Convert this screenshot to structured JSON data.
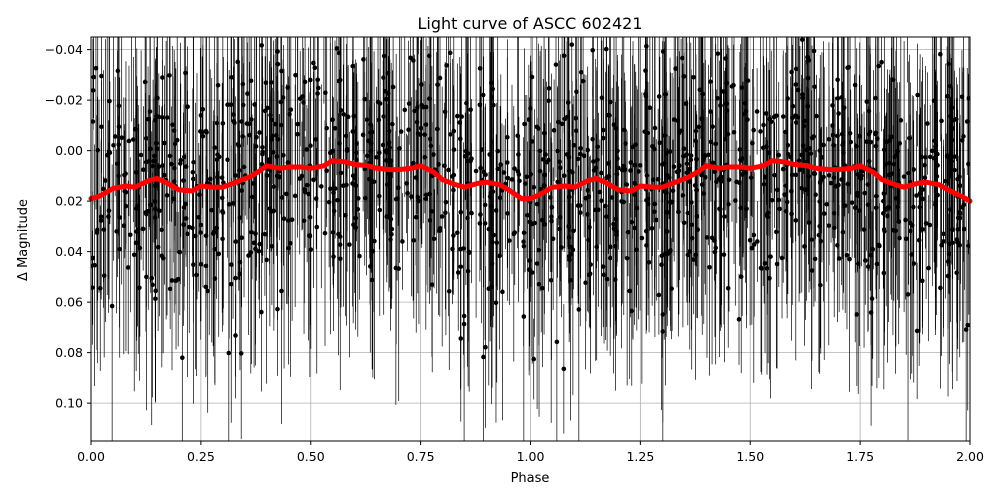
{
  "chart_data": {
    "type": "scatter",
    "title": "Light curve of ASCC 602421",
    "xlabel": "Phase",
    "ylabel": "Δ Magnitude",
    "xlim": [
      0.0,
      2.0
    ],
    "ylim": [
      0.115,
      -0.045
    ],
    "y_inverted": true,
    "grid": true,
    "x_ticks": [
      "0.00",
      "0.25",
      "0.50",
      "0.75",
      "1.00",
      "1.25",
      "1.50",
      "1.75",
      "2.00"
    ],
    "x_tick_values": [
      0.0,
      0.25,
      0.5,
      0.75,
      1.0,
      1.25,
      1.5,
      1.75,
      2.0
    ],
    "y_ticks": [
      "−0.04",
      "−0.02",
      "0.00",
      "0.02",
      "0.04",
      "0.06",
      "0.08",
      "0.10"
    ],
    "y_tick_values": [
      -0.04,
      -0.02,
      0.0,
      0.02,
      0.04,
      0.06,
      0.08,
      0.1
    ],
    "series": [
      {
        "kind": "observations",
        "color": "#000000",
        "marker": "circle",
        "error_bars": true,
        "phase_range": [
          0.0,
          2.0
        ],
        "magnitude_spread_range": [
          -0.045,
          0.115
        ],
        "typical_magnitude_center": 0.01
      },
      {
        "kind": "binned-mean",
        "color": "#ff0000",
        "x": [
          0.0,
          0.02,
          0.05,
          0.08,
          0.1,
          0.13,
          0.15,
          0.17,
          0.2,
          0.23,
          0.25,
          0.28,
          0.3,
          0.33,
          0.36,
          0.38,
          0.4,
          0.43,
          0.45,
          0.48,
          0.5,
          0.53,
          0.55,
          0.58,
          0.6,
          0.63,
          0.65,
          0.68,
          0.7,
          0.73,
          0.75,
          0.78,
          0.8,
          0.83,
          0.85,
          0.88,
          0.9,
          0.93,
          0.95,
          0.98,
          1.0,
          1.02,
          1.05,
          1.08,
          1.1,
          1.13,
          1.15,
          1.17,
          1.2,
          1.23,
          1.25,
          1.28,
          1.3,
          1.33,
          1.36,
          1.38,
          1.4,
          1.43,
          1.45,
          1.48,
          1.5,
          1.53,
          1.55,
          1.58,
          1.6,
          1.63,
          1.65,
          1.68,
          1.7,
          1.73,
          1.75,
          1.78,
          1.8,
          1.83,
          1.85,
          1.88,
          1.9,
          1.93,
          1.95,
          1.98,
          2.0
        ],
        "y": [
          0.019,
          0.018,
          0.015,
          0.014,
          0.0145,
          0.012,
          0.011,
          0.0125,
          0.0155,
          0.016,
          0.014,
          0.0145,
          0.0145,
          0.0125,
          0.0105,
          0.0085,
          0.006,
          0.007,
          0.0065,
          0.0065,
          0.007,
          0.006,
          0.004,
          0.0045,
          0.0055,
          0.006,
          0.007,
          0.0075,
          0.0075,
          0.007,
          0.006,
          0.0085,
          0.0115,
          0.0135,
          0.0145,
          0.013,
          0.0125,
          0.0135,
          0.0155,
          0.019,
          0.019,
          0.0175,
          0.0145,
          0.014,
          0.0145,
          0.012,
          0.011,
          0.0125,
          0.0155,
          0.016,
          0.014,
          0.0145,
          0.0145,
          0.0125,
          0.0105,
          0.0085,
          0.006,
          0.007,
          0.0065,
          0.0065,
          0.007,
          0.006,
          0.004,
          0.0045,
          0.0055,
          0.006,
          0.007,
          0.0075,
          0.0075,
          0.007,
          0.006,
          0.0085,
          0.0115,
          0.0135,
          0.0145,
          0.013,
          0.0125,
          0.0135,
          0.0155,
          0.018,
          0.02
        ]
      }
    ]
  }
}
